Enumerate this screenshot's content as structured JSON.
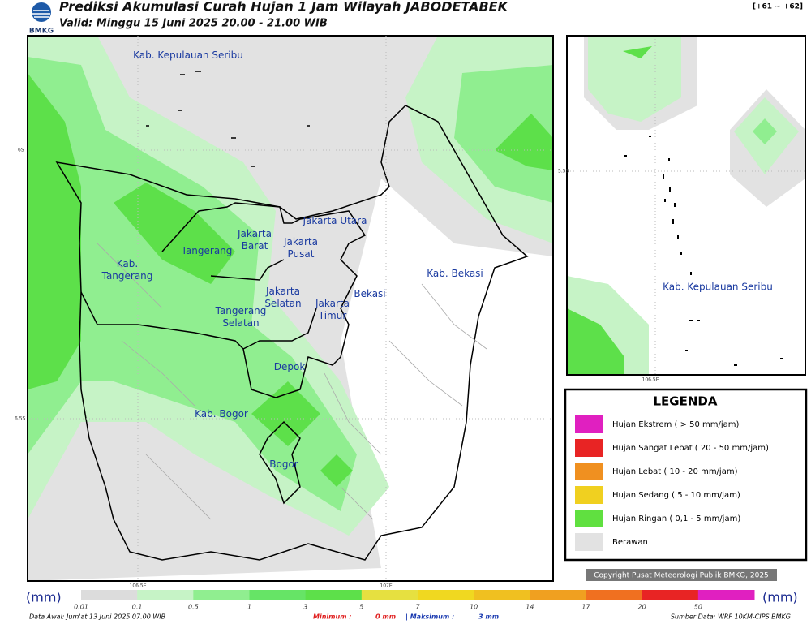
{
  "header": {
    "logo_text": "BMKG",
    "title": "Prediksi Akumulasi Curah Hujan 1 Jam Wilayah JABODETABEK",
    "valid": "Valid: Minggu 15 Juni 2025 20.00 - 21.00 WIB",
    "run_range": "[+61 ~ +62]"
  },
  "map": {
    "labels": [
      [
        "Kab. Kepulauan Seribu"
      ],
      [
        "Jakarta Utara"
      ],
      [
        "Jakarta",
        "Barat"
      ],
      [
        "Jakarta",
        "Pusat"
      ],
      [
        "Tangerang"
      ],
      [
        "Kab.",
        "Tangerang"
      ],
      [
        "Jakarta",
        "Selatan"
      ],
      [
        "Jakarta",
        "Timur"
      ],
      [
        "Bekasi"
      ],
      [
        "Kab. Bekasi"
      ],
      [
        "Tangerang",
        "Selatan"
      ],
      [
        "Depok"
      ],
      [
        "Kab. Bogor"
      ],
      [
        "Bogor"
      ]
    ],
    "lat_ticks": [
      "6S",
      "6.5S"
    ],
    "lon_ticks": [
      "106.5E",
      "107E"
    ]
  },
  "inset": {
    "label": "Kab. Kepulauan Seribu",
    "lat_tick": "5.5S",
    "lon_tick": "106.5E"
  },
  "legend": {
    "title": "LEGENDA",
    "items": [
      "Hujan Ekstrem ( > 50 mm/jam)",
      "Hujan Sangat Lebat ( 20 - 50 mm/jam)",
      "Hujan Lebat ( 10 - 20 mm/jam)",
      "Hujan Sedang ( 5 - 10 mm/jam)",
      "Hujan Ringan ( 0,1 - 5 mm/jam)",
      "Berawan"
    ]
  },
  "copyright": "Copyright Pusat Meteorologi Publik BMKG, 2025",
  "colorbar": {
    "unit": "(mm)",
    "labels": [
      "0.01",
      "0.1",
      "0.5",
      "1",
      "3",
      "5",
      "7",
      "10",
      "14",
      "17",
      "20",
      "50"
    ]
  },
  "footer": {
    "data_awal": "Data Awal: Jum'at 13 Juni 2025 07.00 WIB",
    "min_label": "Minimum :",
    "min_value": "0 mm",
    "max_label": "| Maksimum :",
    "max_value": "3 mm",
    "source": "Sumber Data: WRF 10KM-CIPS BMKG"
  }
}
